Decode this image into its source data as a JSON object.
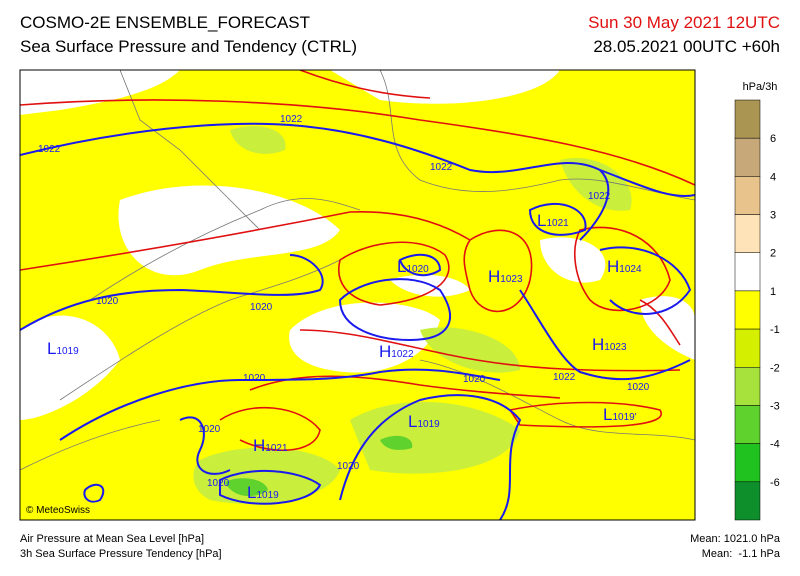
{
  "header": {
    "title": "COSMO-2E ENSEMBLE_FORECAST",
    "subtitle": "Sea Surface Pressure and Tendency (CTRL)",
    "valid": "Sun 30 May 2021 12UTC",
    "run": "28.05.2021 00UTC +60h"
  },
  "legend": {
    "unit": "hPa/3h",
    "labels": [
      "6",
      "4",
      "3",
      "2",
      "1",
      "-1",
      "-2",
      "-3",
      "-4",
      "-6"
    ],
    "colors": [
      "#6e1208",
      "#8a6c18",
      "#ab9552",
      "#c7a878",
      "#e8c48c",
      "#ffe3b8",
      "#ffffff",
      "#ffff00",
      "#d4f000",
      "#a6e13c",
      "#5fd22e",
      "#1fc21f",
      "#0e8f2c"
    ]
  },
  "map": {
    "contours": [
      "1022",
      "1022",
      "1022",
      "1022",
      "1020",
      "1020",
      "1020",
      "1020",
      "1022",
      "1020",
      "1020",
      "1020",
      "1020"
    ],
    "centers": [
      {
        "letter": "L",
        "value": "1021"
      },
      {
        "letter": "L",
        "value": "1020"
      },
      {
        "letter": "H",
        "value": "1023"
      },
      {
        "letter": "H",
        "value": "1024"
      },
      {
        "letter": "L",
        "value": "1019"
      },
      {
        "letter": "H",
        "value": "1022"
      },
      {
        "letter": "H",
        "value": "1023"
      },
      {
        "letter": "L",
        "value": "1019"
      },
      {
        "letter": "L",
        "value": "1019'"
      },
      {
        "letter": "H",
        "value": "1021"
      },
      {
        "letter": "L",
        "value": "1019"
      }
    ],
    "credit": "© MeteoSwiss"
  },
  "footer": {
    "left": [
      "Air Pressure at Mean Sea Level [hPa]",
      "3h Sea Surface Pressure Tendency [hPa]"
    ],
    "right": [
      "Mean: 1021.0 hPa",
      "Mean:  -1.1 hPa"
    ]
  }
}
